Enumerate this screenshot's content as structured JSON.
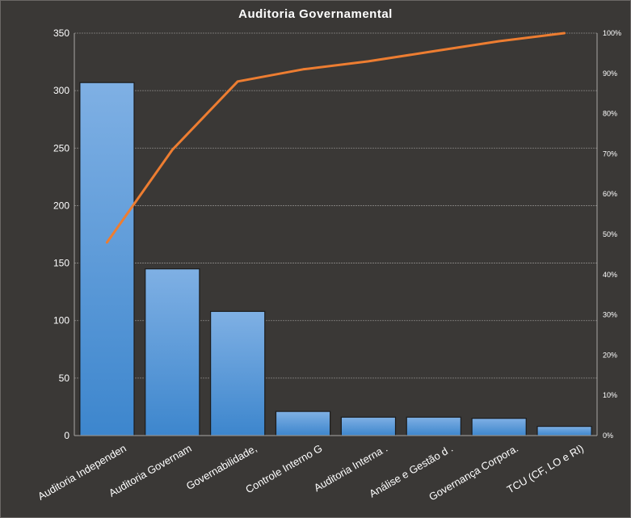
{
  "chart_data": {
    "type": "bar",
    "title": "Auditoria  Governamental",
    "categories": [
      "Auditoria Independen",
      "Auditoria Governam",
      "Governabilidade,",
      "Controle Interno G",
      "Auditoria  Interna .",
      "Análise e Gestão d .",
      "Governança Corpora.",
      "TCU (CF, LO e RI)"
    ],
    "series": [
      {
        "type": "bar",
        "values": [
          307,
          145,
          108,
          21,
          16,
          16,
          15,
          8
        ],
        "color": "#4a90d6"
      },
      {
        "type": "line",
        "axis": "right",
        "values": [
          48,
          71,
          88,
          91,
          93,
          95.5,
          98,
          100
        ],
        "color": "#ed7d31"
      }
    ],
    "ylim": [
      0,
      350
    ],
    "y_ticks": [
      "0",
      "50",
      "100",
      "150",
      "200",
      "250",
      "300",
      "350"
    ],
    "y2lim": [
      0,
      100
    ],
    "y2_ticks": [
      "0%",
      "10%",
      "20%",
      "30%",
      "40%",
      "50%",
      "60%",
      "70%",
      "80%",
      "90%",
      "100%"
    ],
    "grid": true,
    "colors": {
      "background": "#3a3836",
      "grid": "#8a8886",
      "text": "#ffffff"
    }
  }
}
